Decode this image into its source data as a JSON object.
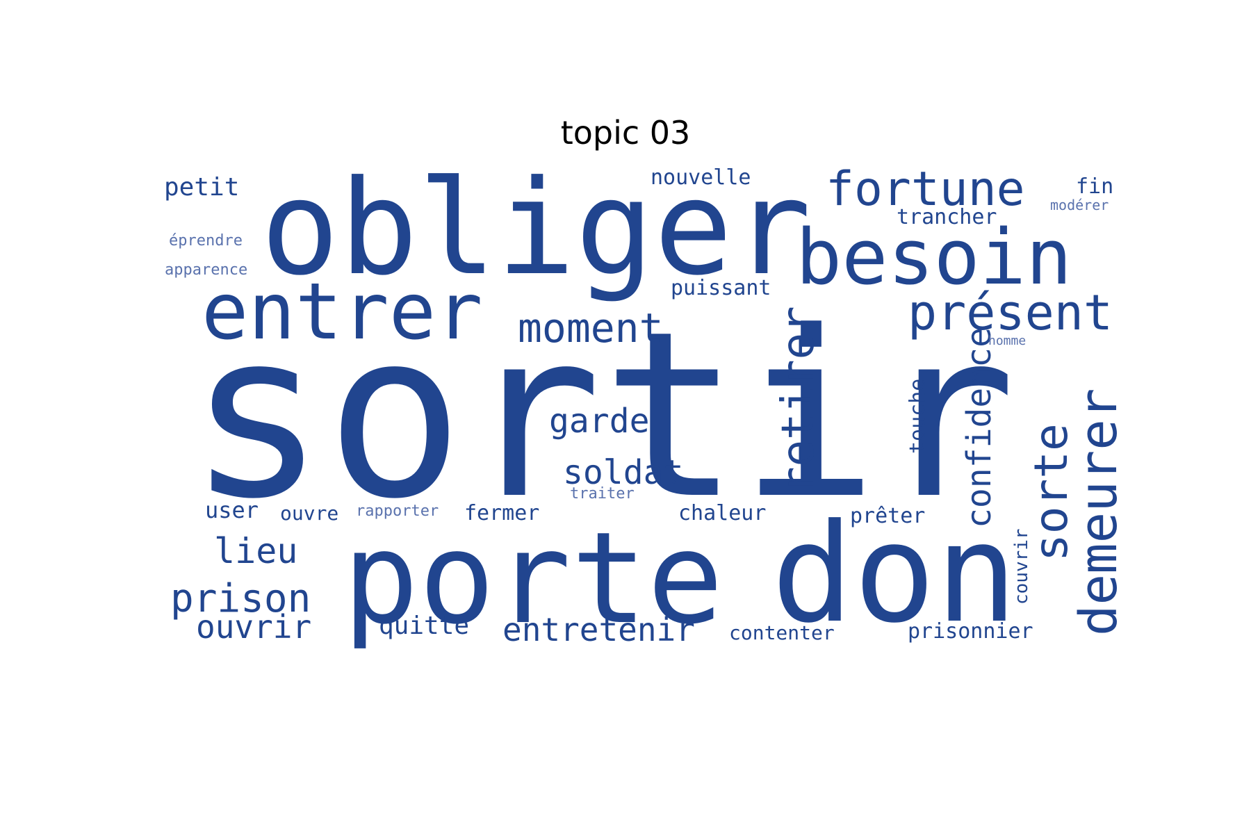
{
  "title": "topic 03",
  "colors": {
    "word": "#21458f",
    "small_word": "#5a72ad"
  },
  "words": [
    {
      "text": "sortir",
      "weight": 1.0
    },
    {
      "text": "obliger",
      "weight": 0.52
    },
    {
      "text": "porte",
      "weight": 0.55
    },
    {
      "text": "don",
      "weight": 0.62
    },
    {
      "text": "besoin",
      "weight": 0.35
    },
    {
      "text": "entrer",
      "weight": 0.3
    },
    {
      "text": "fortune",
      "weight": 0.2
    },
    {
      "text": "présent",
      "weight": 0.22
    },
    {
      "text": "moment",
      "weight": 0.17
    },
    {
      "text": "retirer",
      "weight": 0.22
    },
    {
      "text": "demeurer",
      "weight": 0.24
    },
    {
      "text": "sorte",
      "weight": 0.21
    },
    {
      "text": "confidence",
      "weight": 0.16
    },
    {
      "text": "garde",
      "weight": 0.14
    },
    {
      "text": "soldat",
      "weight": 0.14
    },
    {
      "text": "lieu",
      "weight": 0.16
    },
    {
      "text": "prison",
      "weight": 0.18
    },
    {
      "text": "ouvrir",
      "weight": 0.15
    },
    {
      "text": "entretenir",
      "weight": 0.15
    },
    {
      "text": "quitte",
      "weight": 0.12
    },
    {
      "text": "petit",
      "weight": 0.1
    },
    {
      "text": "nouvelle",
      "weight": 0.09
    },
    {
      "text": "trancher",
      "weight": 0.09
    },
    {
      "text": "fin",
      "weight": 0.09
    },
    {
      "text": "modérer",
      "weight": 0.06
    },
    {
      "text": "éprendre",
      "weight": 0.06
    },
    {
      "text": "apparence",
      "weight": 0.06
    },
    {
      "text": "puissant",
      "weight": 0.1
    },
    {
      "text": "homme",
      "weight": 0.05
    },
    {
      "text": "touche",
      "weight": 0.08
    },
    {
      "text": "user",
      "weight": 0.1
    },
    {
      "text": "ouvre",
      "weight": 0.09
    },
    {
      "text": "rapporter",
      "weight": 0.06
    },
    {
      "text": "traiter",
      "weight": 0.06
    },
    {
      "text": "fermer",
      "weight": 0.09
    },
    {
      "text": "chaleur",
      "weight": 0.09
    },
    {
      "text": "prêter",
      "weight": 0.09
    },
    {
      "text": "couvrir",
      "weight": 0.08
    },
    {
      "text": "contenter",
      "weight": 0.09
    },
    {
      "text": "prisonnier",
      "weight": 0.09
    }
  ]
}
